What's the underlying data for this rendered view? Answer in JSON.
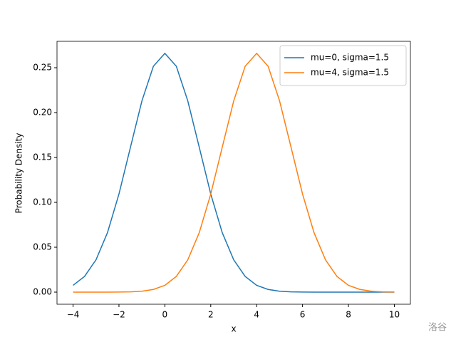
{
  "chart_data": {
    "type": "line",
    "xlabel": "x",
    "ylabel": "Probability Density",
    "x": [
      -4,
      -3.5,
      -3,
      -2.5,
      -2,
      -1.5,
      -1,
      -0.5,
      0,
      0.5,
      1,
      1.5,
      2,
      2.5,
      3,
      3.5,
      4,
      4.5,
      5,
      5.5,
      6,
      6.5,
      7,
      7.5,
      8,
      8.5,
      9,
      9.5,
      10
    ],
    "series": [
      {
        "name": "mu=0, sigma=1.5",
        "color": "#1f77b4",
        "values": [
          0.0076,
          0.0175,
          0.036,
          0.0663,
          0.1093,
          0.1613,
          0.213,
          0.2516,
          0.266,
          0.2516,
          0.213,
          0.1613,
          0.1093,
          0.0663,
          0.036,
          0.0175,
          0.0076,
          0.003,
          0.001,
          0.0003,
          0.0001,
          0,
          0,
          0,
          0,
          0,
          0,
          0,
          0
        ]
      },
      {
        "name": "mu=4, sigma=1.5",
        "color": "#ff7f0e",
        "values": [
          0,
          0,
          0,
          0,
          0.0001,
          0.0003,
          0.001,
          0.003,
          0.0076,
          0.0175,
          0.036,
          0.0663,
          0.1093,
          0.1613,
          0.213,
          0.2516,
          0.266,
          0.2516,
          0.213,
          0.1613,
          0.1093,
          0.0663,
          0.036,
          0.0175,
          0.0076,
          0.003,
          0.001,
          0.0003,
          0.0001
        ]
      }
    ],
    "xlim": [
      -4.7,
      10.7
    ],
    "xticks": [
      {
        "value": -4,
        "label": "−4"
      },
      {
        "value": -2,
        "label": "−2"
      },
      0,
      2,
      4,
      6,
      8,
      10
    ],
    "ylim": [
      -0.0135,
      0.2794
    ],
    "yticks": [
      {
        "value": 0,
        "label": "0.00"
      },
      {
        "value": 0.05,
        "label": "0.05"
      },
      {
        "value": 0.1,
        "label": "0.10"
      },
      {
        "value": 0.15,
        "label": "0.15"
      },
      {
        "value": 0.2,
        "label": "0.20"
      },
      {
        "value": 0.25,
        "label": "0.25"
      }
    ],
    "legend": "upper right",
    "watermark": "洛谷"
  }
}
